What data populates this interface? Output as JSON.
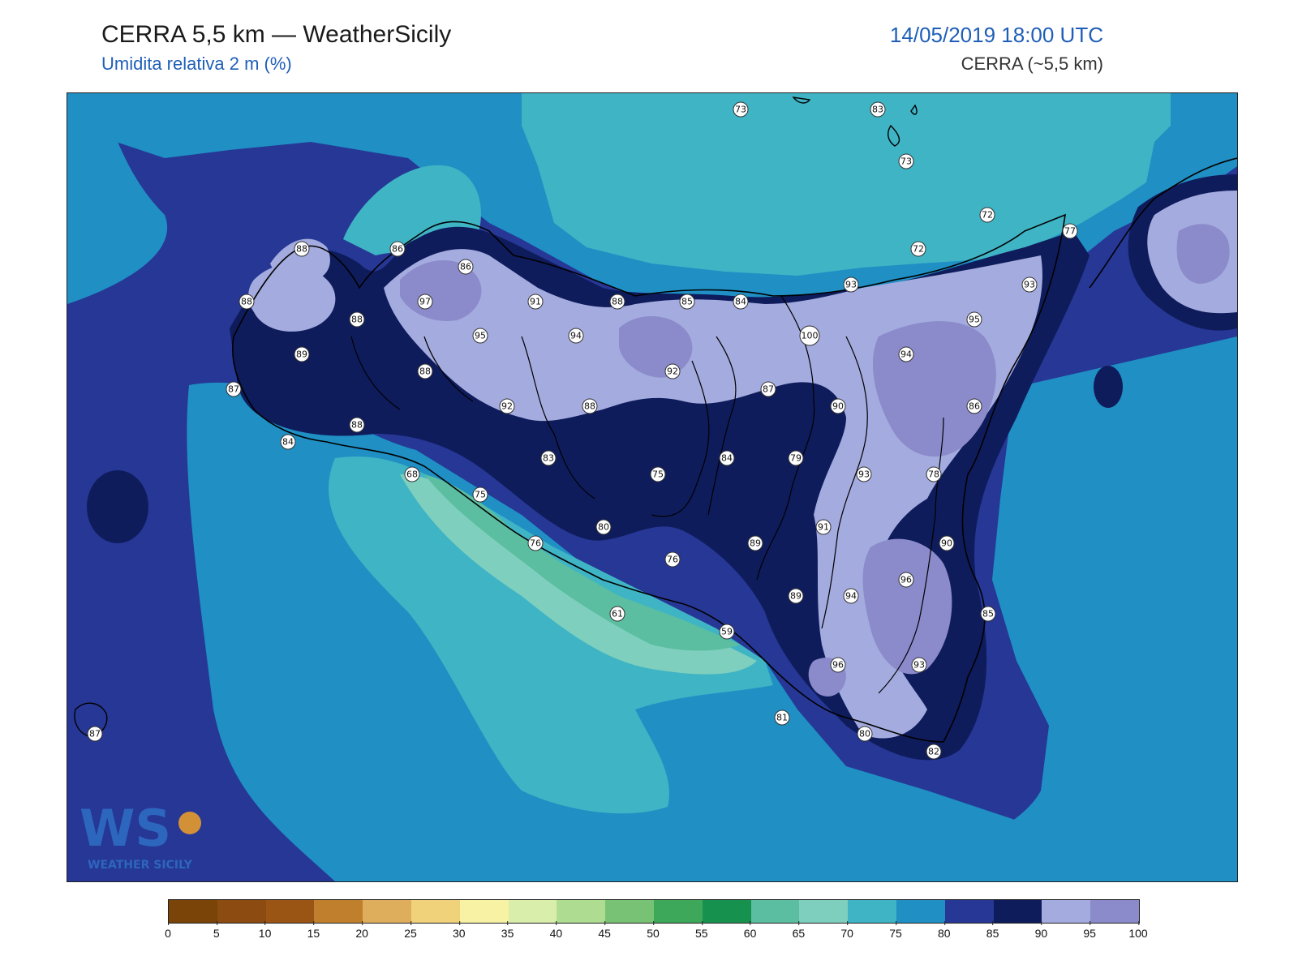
{
  "header": {
    "title": "CERRA 5,5 km — WeatherSicily",
    "subtitle": "Umidita relativa 2 m (%)",
    "datetime": "14/05/2019 18:00 UTC",
    "model": "CERRA (~5,5 km)"
  },
  "map": {
    "variable": "relative humidity 2 m",
    "stations": [
      {
        "v": "73"
      },
      {
        "v": "83"
      },
      {
        "v": "73"
      },
      {
        "v": "72"
      },
      {
        "v": "77"
      },
      {
        "v": "72"
      },
      {
        "v": "88"
      },
      {
        "v": "86"
      },
      {
        "v": "86"
      },
      {
        "v": "93"
      },
      {
        "v": "93"
      },
      {
        "v": "88"
      },
      {
        "v": "97"
      },
      {
        "v": "91"
      },
      {
        "v": "88"
      },
      {
        "v": "85"
      },
      {
        "v": "84"
      },
      {
        "v": "88"
      },
      {
        "v": "95"
      },
      {
        "v": "94"
      },
      {
        "v": "100"
      },
      {
        "v": "95"
      },
      {
        "v": "89"
      },
      {
        "v": "94"
      },
      {
        "v": "87"
      },
      {
        "v": "88"
      },
      {
        "v": "92"
      },
      {
        "v": "87"
      },
      {
        "v": "92"
      },
      {
        "v": "88"
      },
      {
        "v": "90"
      },
      {
        "v": "86"
      },
      {
        "v": "88"
      },
      {
        "v": "84"
      },
      {
        "v": "83"
      },
      {
        "v": "84"
      },
      {
        "v": "79"
      },
      {
        "v": "68"
      },
      {
        "v": "75"
      },
      {
        "v": "75"
      },
      {
        "v": "93"
      },
      {
        "v": "78"
      },
      {
        "v": "80"
      },
      {
        "v": "91"
      },
      {
        "v": "76"
      },
      {
        "v": "76"
      },
      {
        "v": "89"
      },
      {
        "v": "90"
      },
      {
        "v": "96"
      },
      {
        "v": "89"
      },
      {
        "v": "94"
      },
      {
        "v": "61"
      },
      {
        "v": "85"
      },
      {
        "v": "59"
      },
      {
        "v": "96"
      },
      {
        "v": "93"
      },
      {
        "v": "81"
      },
      {
        "v": "80"
      },
      {
        "v": "82"
      },
      {
        "v": "87"
      }
    ]
  },
  "logo": {
    "text": "WEATHER SICILY",
    "initials": "WS"
  },
  "colorbar": {
    "colors": [
      "#7a4408",
      "#8c4b10",
      "#9a5414",
      "#c07f2c",
      "#deae5c",
      "#f0d27a",
      "#f7f2a4",
      "#d8eeaa",
      "#aedd91",
      "#77c274",
      "#3da75a",
      "#16924e",
      "#5bbea0",
      "#7ecfbd",
      "#3fb4c5",
      "#1f8fc4",
      "#263795",
      "#0f1c5c",
      "#a4abde",
      "#8b8acb"
    ],
    "ticks": [
      "0",
      "5",
      "10",
      "15",
      "20",
      "25",
      "30",
      "35",
      "40",
      "45",
      "50",
      "55",
      "60",
      "65",
      "70",
      "75",
      "80",
      "85",
      "90",
      "95",
      "100"
    ]
  }
}
